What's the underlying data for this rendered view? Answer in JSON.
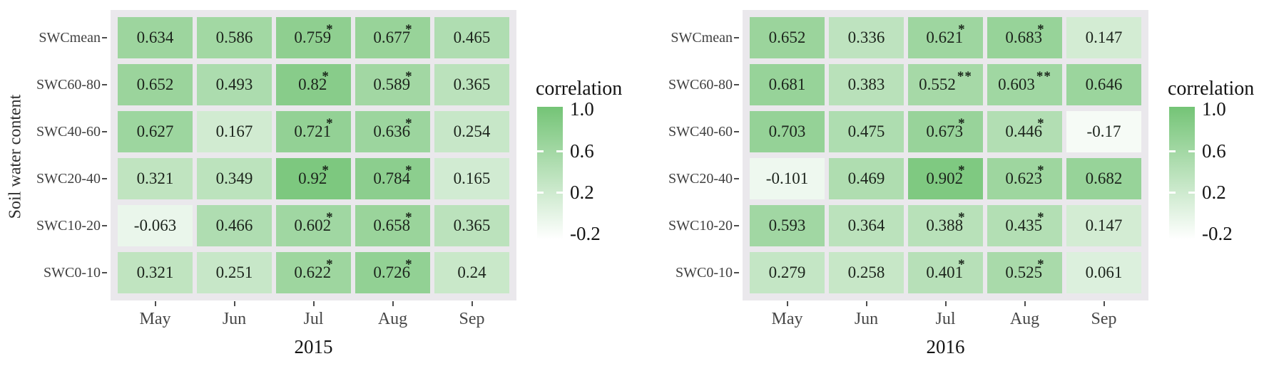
{
  "figure_title": "",
  "chart_data": [
    {
      "type": "heatmap",
      "xlabel": "2015",
      "ylabel": "Soil water content",
      "x_categories": [
        "May",
        "Jun",
        "Jul",
        "Aug",
        "Sep"
      ],
      "y_categories": [
        "SWCmean",
        "SWC60-80",
        "SWC40-60",
        "SWC20-40",
        "SWC10-20",
        "SWC0-10"
      ],
      "values": [
        [
          "0.634",
          "0.586",
          "0.759",
          "0.677",
          "0.465"
        ],
        [
          "0.652",
          "0.493",
          "0.82",
          "0.589",
          "0.365"
        ],
        [
          "0.627",
          "0.167",
          "0.721",
          "0.636",
          "0.254"
        ],
        [
          "0.321",
          "0.349",
          "0.92",
          "0.784",
          "0.165"
        ],
        [
          "-0.063",
          "0.466",
          "0.602",
          "0.658",
          "0.365"
        ],
        [
          "0.321",
          "0.251",
          "0.622",
          "0.726",
          "0.24"
        ]
      ],
      "significance": [
        [
          "",
          "",
          "*",
          "*",
          ""
        ],
        [
          "",
          "",
          "*",
          "*",
          ""
        ],
        [
          "",
          "",
          "*",
          "*",
          ""
        ],
        [
          "",
          "",
          "*",
          "*",
          ""
        ],
        [
          "",
          "",
          "*",
          "*",
          ""
        ],
        [
          "",
          "",
          "*",
          "*",
          ""
        ]
      ],
      "legend": {
        "title": "correlation",
        "tick_labels": [
          "1.0",
          "0.6",
          "0.2",
          "-0.2"
        ],
        "tick_values": [
          1.0,
          0.6,
          0.2,
          -0.2
        ],
        "domain": [
          -0.25,
          1.0
        ],
        "high_color": "#74c476",
        "low_color": "#ffffff"
      }
    },
    {
      "type": "heatmap",
      "xlabel": "2016",
      "ylabel": "",
      "x_categories": [
        "May",
        "Jun",
        "Jul",
        "Aug",
        "Sep"
      ],
      "y_categories": [
        "SWCmean",
        "SWC60-80",
        "SWC40-60",
        "SWC20-40",
        "SWC10-20",
        "SWC0-10"
      ],
      "values": [
        [
          "0.652",
          "0.336",
          "0.621",
          "0.683",
          "0.147"
        ],
        [
          "0.681",
          "0.383",
          "0.552",
          "0.603",
          "0.646"
        ],
        [
          "0.703",
          "0.475",
          "0.673",
          "0.446",
          "-0.17"
        ],
        [
          "-0.101",
          "0.469",
          "0.902",
          "0.623",
          "0.682"
        ],
        [
          "0.593",
          "0.364",
          "0.388",
          "0.435",
          "0.147"
        ],
        [
          "0.279",
          "0.258",
          "0.401",
          "0.525",
          "0.061"
        ]
      ],
      "significance": [
        [
          "",
          "",
          "*",
          "*",
          ""
        ],
        [
          "",
          "",
          "**",
          "**",
          ""
        ],
        [
          "",
          "",
          "*",
          "*",
          ""
        ],
        [
          "",
          "",
          "*",
          "*",
          ""
        ],
        [
          "",
          "",
          "*",
          "*",
          ""
        ],
        [
          "",
          "",
          "*",
          "*",
          ""
        ]
      ],
      "legend": {
        "title": "correlation",
        "tick_labels": [
          "1.0",
          "0.6",
          "0.2",
          "-0.2"
        ],
        "tick_values": [
          1.0,
          0.6,
          0.2,
          -0.2
        ],
        "domain": [
          -0.25,
          1.0
        ],
        "high_color": "#74c476",
        "low_color": "#ffffff"
      }
    }
  ]
}
